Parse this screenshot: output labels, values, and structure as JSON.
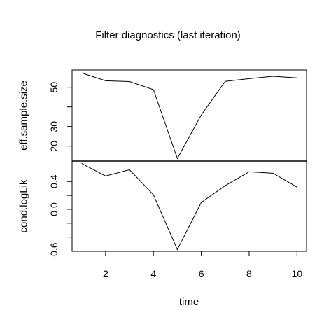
{
  "chart_data": {
    "type": "line",
    "title": "Filter diagnostics (last iteration)",
    "xlabel": "time",
    "x": [
      1,
      2,
      3,
      4,
      5,
      6,
      7,
      8,
      9,
      10
    ],
    "xlim": [
      0.6,
      10.4
    ],
    "xticks": [
      2,
      4,
      6,
      8,
      10
    ],
    "grid": false,
    "legend": "none",
    "panels": [
      {
        "ylabel": "eff.sample.size",
        "ylim": [
          12.4,
          58.8
        ],
        "yticks": [
          20,
          30,
          40,
          50
        ],
        "yticklabels": [
          "20",
          "30",
          "",
          "50"
        ],
        "values": [
          57.3,
          53.3,
          52.9,
          48.8,
          13.7,
          35.9,
          53.0,
          54.4,
          55.6,
          54.8
        ]
      },
      {
        "ylabel": "cond.logLik",
        "ylim": [
          -0.605,
          0.695
        ],
        "yticks": [
          -0.6,
          -0.4,
          -0.2,
          0.0,
          0.2,
          0.4
        ],
        "yticklabels": [
          "-0.6",
          "",
          "",
          "0.0",
          "",
          "0.4"
        ],
        "values": [
          0.66,
          0.48,
          0.57,
          0.21,
          -0.58,
          0.1,
          0.34,
          0.54,
          0.52,
          0.32
        ]
      }
    ]
  }
}
